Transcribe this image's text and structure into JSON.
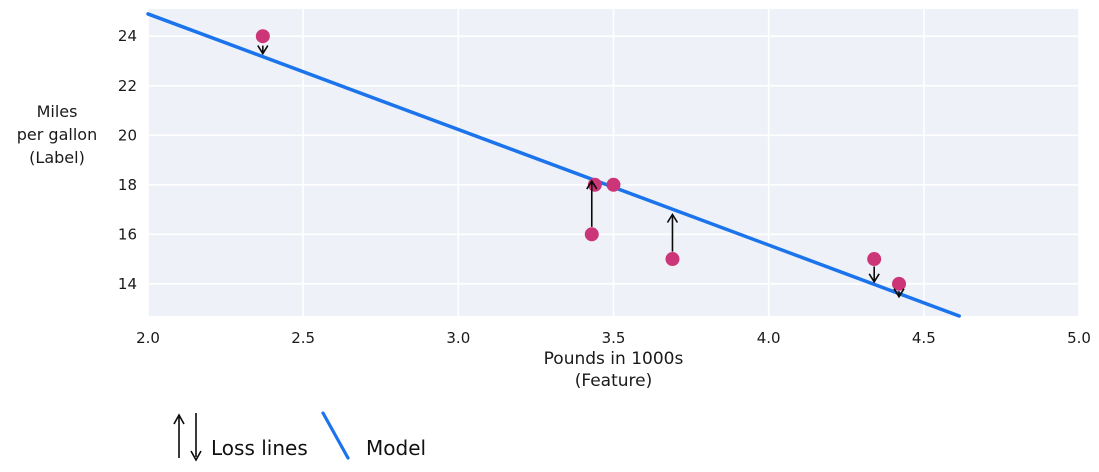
{
  "page": {
    "background": "#ffffff"
  },
  "chart_data": {
    "type": "scatter",
    "title": "",
    "xlabel": "Pounds in 1000s\n(Feature)",
    "ylabel": "Miles\nper gallon\n(Label)",
    "xlim": [
      2.0,
      5.0
    ],
    "ylim": [
      12.7,
      25.1
    ],
    "grid": true,
    "plot_bg": "#eef1f7",
    "grid_color": "#ffffff",
    "x_ticks": [
      {
        "v": 2.0,
        "label": "2.0"
      },
      {
        "v": 2.5,
        "label": "2.5"
      },
      {
        "v": 3.0,
        "label": "3.0"
      },
      {
        "v": 3.5,
        "label": "3.5"
      },
      {
        "v": 4.0,
        "label": "4.0"
      },
      {
        "v": 4.5,
        "label": "4.5"
      },
      {
        "v": 5.0,
        "label": "5.0"
      }
    ],
    "y_ticks": [
      {
        "v": 14,
        "label": "14"
      },
      {
        "v": 16,
        "label": "16"
      },
      {
        "v": 18,
        "label": "18"
      },
      {
        "v": 20,
        "label": "20"
      },
      {
        "v": 22,
        "label": "22"
      },
      {
        "v": 24,
        "label": "24"
      }
    ],
    "points": [
      {
        "x": 2.37,
        "y": 24
      },
      {
        "x": 3.43,
        "y": 16
      },
      {
        "x": 3.44,
        "y": 18
      },
      {
        "x": 3.5,
        "y": 18
      },
      {
        "x": 3.69,
        "y": 15
      },
      {
        "x": 4.34,
        "y": 15
      },
      {
        "x": 4.42,
        "y": 14
      }
    ],
    "point_color": "#cc3577",
    "point_radius": 7,
    "model_line": {
      "x1": 2.0,
      "y1": 24.9,
      "x2": 4.614,
      "y2": 12.7,
      "color": "#1b74ec",
      "width": 3.5
    },
    "loss_arrows": [
      {
        "x": 2.37,
        "from": 23.62,
        "to": 23.3,
        "dir": "down"
      },
      {
        "x": 3.43,
        "from": 16.3,
        "to": 18.15,
        "dir": "up"
      },
      {
        "x": 3.69,
        "from": 15.3,
        "to": 16.8,
        "dir": "up"
      },
      {
        "x": 4.34,
        "from": 14.7,
        "to": 14.08,
        "dir": "down"
      },
      {
        "x": 4.42,
        "from": 13.7,
        "to": 13.48,
        "dir": "down"
      }
    ],
    "loss_color": "#0a0a0a",
    "tick_font_px": 15,
    "tick_color": "#1a1a1a"
  },
  "legend": {
    "loss_label": "Loss lines",
    "model_label": "Model"
  }
}
